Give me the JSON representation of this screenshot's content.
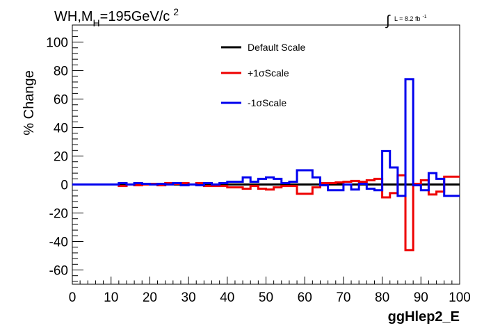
{
  "header": {
    "title_main": "WH,M",
    "title_sub": "H",
    "title_rest": "=195GeV/c",
    "title_sup": "2",
    "lumi": "L = 8.2 fb",
    "lumi_sup": "-1"
  },
  "chart_data": {
    "type": "line",
    "step": true,
    "xlabel": "ggHlep2_E",
    "ylabel": "% Change",
    "xlim": [
      0,
      100
    ],
    "ylim": [
      -70,
      112
    ],
    "xticks": [
      0,
      10,
      20,
      30,
      40,
      50,
      60,
      70,
      80,
      90,
      100
    ],
    "yticks": [
      -60,
      -40,
      -20,
      0,
      20,
      40,
      60,
      80,
      100
    ],
    "grid": false,
    "legend_position": "top-center",
    "series": [
      {
        "name": "Default Scale",
        "color": "#000000",
        "bins": [
          [
            0,
            100,
            0
          ]
        ]
      },
      {
        "name": "+1σScale",
        "color": "#ee0000",
        "bins": [
          [
            0,
            12,
            0
          ],
          [
            12,
            14,
            -1
          ],
          [
            14,
            16,
            0
          ],
          [
            16,
            18,
            -0.5
          ],
          [
            18,
            20,
            0
          ],
          [
            20,
            22,
            0.5
          ],
          [
            22,
            24,
            -0.5
          ],
          [
            24,
            26,
            1
          ],
          [
            26,
            28,
            0.5
          ],
          [
            28,
            30,
            1
          ],
          [
            30,
            32,
            0
          ],
          [
            32,
            34,
            1
          ],
          [
            34,
            36,
            -1
          ],
          [
            36,
            38,
            -1
          ],
          [
            38,
            40,
            -1
          ],
          [
            40,
            42,
            -2
          ],
          [
            42,
            44,
            -2
          ],
          [
            44,
            46,
            -3
          ],
          [
            46,
            48,
            -1
          ],
          [
            48,
            50,
            -3
          ],
          [
            50,
            52,
            -3.5
          ],
          [
            52,
            54,
            -2
          ],
          [
            54,
            56,
            -1
          ],
          [
            56,
            58,
            -1
          ],
          [
            58,
            62,
            -6.5
          ],
          [
            62,
            64,
            -2
          ],
          [
            64,
            66,
            1
          ],
          [
            66,
            68,
            1
          ],
          [
            68,
            70,
            1.5
          ],
          [
            70,
            72,
            2
          ],
          [
            72,
            74,
            2.5
          ],
          [
            74,
            76,
            2
          ],
          [
            76,
            78,
            3
          ],
          [
            78,
            80,
            4
          ],
          [
            80,
            82,
            -9
          ],
          [
            82,
            84,
            -6
          ],
          [
            84,
            86,
            6.5
          ],
          [
            86,
            88,
            -46
          ],
          [
            88,
            90,
            0.5
          ],
          [
            90,
            92,
            3
          ],
          [
            92,
            94,
            -7
          ],
          [
            94,
            96,
            -5
          ],
          [
            96,
            100,
            5.5
          ]
        ]
      },
      {
        "name": "-1σScale",
        "color": "#0000ee",
        "bins": [
          [
            0,
            12,
            0
          ],
          [
            12,
            14,
            1
          ],
          [
            14,
            16,
            0
          ],
          [
            16,
            18,
            1
          ],
          [
            18,
            20,
            0.5
          ],
          [
            20,
            22,
            0
          ],
          [
            22,
            24,
            0.5
          ],
          [
            24,
            26,
            0
          ],
          [
            26,
            28,
            1
          ],
          [
            28,
            30,
            -0.5
          ],
          [
            30,
            32,
            0
          ],
          [
            32,
            34,
            -0.5
          ],
          [
            34,
            36,
            1
          ],
          [
            36,
            38,
            0
          ],
          [
            38,
            40,
            1
          ],
          [
            40,
            42,
            2
          ],
          [
            42,
            44,
            2
          ],
          [
            44,
            46,
            5
          ],
          [
            46,
            48,
            2
          ],
          [
            48,
            50,
            4
          ],
          [
            50,
            52,
            5
          ],
          [
            52,
            54,
            4
          ],
          [
            54,
            56,
            1
          ],
          [
            56,
            58,
            2
          ],
          [
            58,
            62,
            10
          ],
          [
            62,
            64,
            5
          ],
          [
            64,
            66,
            -0.5
          ],
          [
            66,
            68,
            -4
          ],
          [
            68,
            70,
            -4
          ],
          [
            70,
            72,
            0
          ],
          [
            72,
            74,
            -3.5
          ],
          [
            74,
            76,
            0.5
          ],
          [
            76,
            78,
            -3
          ],
          [
            78,
            80,
            -4
          ],
          [
            80,
            82,
            23.5
          ],
          [
            82,
            84,
            12
          ],
          [
            84,
            86,
            -8
          ],
          [
            86,
            88,
            74
          ],
          [
            88,
            90,
            -0.5
          ],
          [
            90,
            92,
            -4
          ],
          [
            92,
            94,
            8
          ],
          [
            94,
            96,
            4
          ],
          [
            96,
            100,
            -8
          ]
        ]
      }
    ]
  }
}
